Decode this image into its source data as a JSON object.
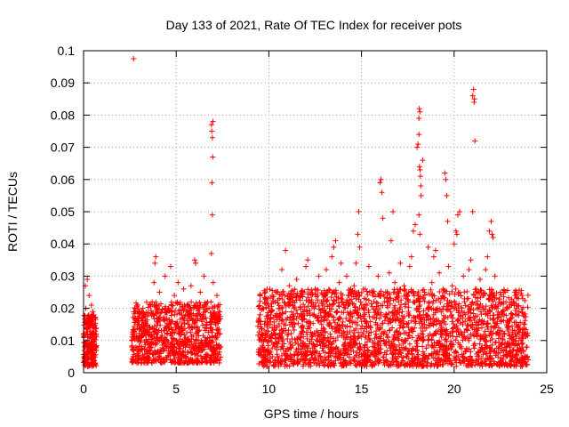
{
  "chart_data": {
    "type": "scatter",
    "title": "Day 133 of 2021, Rate Of TEC Index for receiver pots",
    "xlabel": "GPS time / hours",
    "ylabel": "ROTI / TECUs",
    "xlim": [
      0,
      25
    ],
    "ylim": [
      0,
      0.1
    ],
    "xticks": [
      {
        "value": 0,
        "label": "0"
      },
      {
        "value": 5,
        "label": "5"
      },
      {
        "value": 10,
        "label": "10"
      },
      {
        "value": 15,
        "label": "15"
      },
      {
        "value": 20,
        "label": "20"
      },
      {
        "value": 25,
        "label": "25"
      }
    ],
    "yticks": [
      {
        "value": 0,
        "label": "0"
      },
      {
        "value": 0.01,
        "label": "0.01"
      },
      {
        "value": 0.02,
        "label": "0.02"
      },
      {
        "value": 0.03,
        "label": "0.03"
      },
      {
        "value": 0.04,
        "label": "0.04"
      },
      {
        "value": 0.05,
        "label": "0.05"
      },
      {
        "value": 0.06,
        "label": "0.06"
      },
      {
        "value": 0.07,
        "label": "0.07"
      },
      {
        "value": 0.08,
        "label": "0.08"
      },
      {
        "value": 0.09,
        "label": "0.09"
      },
      {
        "value": 0.1,
        "label": "0.1"
      }
    ],
    "grid": true,
    "marker": "+",
    "color": "#ff0000",
    "series": [
      {
        "name": "pots",
        "points": [
          [
            0.0,
            0.012
          ],
          [
            0.05,
            0.008
          ],
          [
            0.1,
            0.027
          ],
          [
            0.12,
            0.02
          ],
          [
            0.15,
            0.004
          ],
          [
            0.18,
            0.015
          ],
          [
            0.2,
            0.029
          ],
          [
            0.22,
            0.011
          ],
          [
            0.25,
            0.006
          ],
          [
            0.28,
            0.018
          ],
          [
            0.3,
            0.024
          ],
          [
            0.33,
            0.009
          ],
          [
            0.35,
            0.013
          ],
          [
            0.38,
            0.003
          ],
          [
            0.4,
            0.016
          ],
          [
            0.42,
            0.021
          ],
          [
            0.45,
            0.007
          ],
          [
            0.48,
            0.012
          ],
          [
            0.5,
            0.019
          ],
          [
            0.52,
            0.005
          ],
          [
            0.55,
            0.014
          ],
          [
            0.58,
            0.01
          ],
          [
            0.6,
            0.017
          ],
          [
            0.62,
            0.008
          ],
          [
            0.65,
            0.003
          ],
          [
            2.7,
            0.0975
          ],
          [
            2.6,
            0.008
          ],
          [
            2.7,
            0.012
          ],
          [
            2.8,
            0.019
          ],
          [
            2.9,
            0.006
          ],
          [
            3.0,
            0.015
          ],
          [
            3.1,
            0.01
          ],
          [
            3.2,
            0.02
          ],
          [
            3.3,
            0.005
          ],
          [
            3.4,
            0.013
          ],
          [
            3.5,
            0.018
          ],
          [
            3.6,
            0.009
          ],
          [
            3.7,
            0.022
          ],
          [
            3.8,
            0.028
          ],
          [
            3.85,
            0.034
          ],
          [
            3.9,
            0.036
          ],
          [
            3.95,
            0.016
          ],
          [
            4.0,
            0.011
          ],
          [
            4.1,
            0.025
          ],
          [
            4.2,
            0.007
          ],
          [
            4.3,
            0.017
          ],
          [
            4.4,
            0.03
          ],
          [
            4.5,
            0.012
          ],
          [
            4.6,
            0.02
          ],
          [
            4.7,
            0.033
          ],
          [
            4.8,
            0.009
          ],
          [
            4.9,
            0.024
          ],
          [
            5.0,
            0.015
          ],
          [
            5.1,
            0.028
          ],
          [
            5.2,
            0.006
          ],
          [
            5.3,
            0.018
          ],
          [
            5.4,
            0.026
          ],
          [
            5.5,
            0.011
          ],
          [
            5.6,
            0.021
          ],
          [
            5.7,
            0.014
          ],
          [
            5.8,
            0.027
          ],
          [
            5.9,
            0.008
          ],
          [
            6.0,
            0.035
          ],
          [
            6.05,
            0.034
          ],
          [
            6.1,
            0.02
          ],
          [
            6.2,
            0.013
          ],
          [
            6.3,
            0.025
          ],
          [
            6.4,
            0.009
          ],
          [
            6.5,
            0.03
          ],
          [
            6.6,
            0.017
          ],
          [
            6.7,
            0.022
          ],
          [
            6.8,
            0.011
          ],
          [
            6.9,
            0.077
          ],
          [
            6.92,
            0.075
          ],
          [
            6.95,
            0.073
          ],
          [
            6.97,
            0.067
          ],
          [
            6.93,
            0.059
          ],
          [
            6.95,
            0.049
          ],
          [
            6.9,
            0.037
          ],
          [
            6.98,
            0.078
          ],
          [
            7.0,
            0.028
          ],
          [
            7.1,
            0.016
          ],
          [
            7.2,
            0.024
          ],
          [
            7.3,
            0.012
          ],
          [
            7.35,
            0.019
          ],
          [
            7.4,
            0.008
          ],
          [
            9.5,
            0.02
          ],
          [
            9.6,
            0.012
          ],
          [
            9.7,
            0.007
          ],
          [
            9.8,
            0.016
          ],
          [
            9.9,
            0.022
          ],
          [
            10.0,
            0.01
          ],
          [
            10.1,
            0.018
          ],
          [
            10.2,
            0.005
          ],
          [
            10.3,
            0.014
          ],
          [
            10.4,
            0.025
          ],
          [
            10.5,
            0.009
          ],
          [
            10.6,
            0.02
          ],
          [
            10.7,
            0.032
          ],
          [
            10.8,
            0.013
          ],
          [
            10.9,
            0.038
          ],
          [
            11.0,
            0.017
          ],
          [
            11.1,
            0.027
          ],
          [
            11.2,
            0.008
          ],
          [
            11.3,
            0.021
          ],
          [
            11.4,
            0.015
          ],
          [
            11.5,
            0.029
          ],
          [
            11.6,
            0.011
          ],
          [
            11.7,
            0.024
          ],
          [
            11.8,
            0.006
          ],
          [
            11.9,
            0.019
          ],
          [
            12.0,
            0.033
          ],
          [
            12.1,
            0.035
          ],
          [
            12.2,
            0.014
          ],
          [
            12.3,
            0.022
          ],
          [
            12.4,
            0.009
          ],
          [
            12.5,
            0.026
          ],
          [
            12.6,
            0.017
          ],
          [
            12.7,
            0.03
          ],
          [
            12.8,
            0.012
          ],
          [
            12.9,
            0.02
          ],
          [
            13.0,
            0.024
          ],
          [
            13.1,
            0.032
          ],
          [
            13.2,
            0.01
          ],
          [
            13.3,
            0.019
          ],
          [
            13.4,
            0.036
          ],
          [
            13.5,
            0.039
          ],
          [
            13.6,
            0.041
          ],
          [
            13.7,
            0.015
          ],
          [
            13.8,
            0.028
          ],
          [
            13.9,
            0.034
          ],
          [
            14.0,
            0.022
          ],
          [
            14.1,
            0.012
          ],
          [
            14.2,
            0.03
          ],
          [
            14.3,
            0.018
          ],
          [
            14.4,
            0.025
          ],
          [
            14.5,
            0.008
          ],
          [
            14.6,
            0.027
          ],
          [
            14.7,
            0.034
          ],
          [
            14.8,
            0.043
          ],
          [
            14.85,
            0.05
          ],
          [
            14.9,
            0.039
          ],
          [
            15.0,
            0.016
          ],
          [
            15.1,
            0.026
          ],
          [
            15.2,
            0.011
          ],
          [
            15.3,
            0.021
          ],
          [
            15.4,
            0.033
          ],
          [
            15.5,
            0.014
          ],
          [
            15.6,
            0.024
          ],
          [
            15.7,
            0.009
          ],
          [
            15.8,
            0.018
          ],
          [
            15.9,
            0.03
          ],
          [
            16.0,
            0.059
          ],
          [
            16.05,
            0.06
          ],
          [
            16.1,
            0.056
          ],
          [
            16.15,
            0.048
          ],
          [
            16.2,
            0.012
          ],
          [
            16.3,
            0.025
          ],
          [
            16.4,
            0.017
          ],
          [
            16.5,
            0.031
          ],
          [
            16.6,
            0.041
          ],
          [
            16.7,
            0.05
          ],
          [
            16.8,
            0.028
          ],
          [
            16.9,
            0.013
          ],
          [
            17.0,
            0.022
          ],
          [
            17.1,
            0.034
          ],
          [
            17.2,
            0.019
          ],
          [
            17.3,
            0.027
          ],
          [
            17.4,
            0.01
          ],
          [
            17.5,
            0.024
          ],
          [
            17.6,
            0.033
          ],
          [
            17.7,
            0.036
          ],
          [
            17.8,
            0.044
          ],
          [
            17.9,
            0.046
          ],
          [
            18.0,
            0.07
          ],
          [
            18.05,
            0.071
          ],
          [
            18.1,
            0.079
          ],
          [
            18.12,
            0.082
          ],
          [
            18.15,
            0.081
          ],
          [
            18.1,
            0.074
          ],
          [
            18.13,
            0.064
          ],
          [
            18.16,
            0.063
          ],
          [
            18.18,
            0.061
          ],
          [
            18.2,
            0.058
          ],
          [
            18.22,
            0.055
          ],
          [
            18.1,
            0.049
          ],
          [
            18.15,
            0.043
          ],
          [
            18.3,
            0.066
          ],
          [
            18.4,
            0.025
          ],
          [
            18.5,
            0.018
          ],
          [
            18.6,
            0.039
          ],
          [
            18.7,
            0.012
          ],
          [
            18.8,
            0.028
          ],
          [
            18.9,
            0.036
          ],
          [
            19.0,
            0.038
          ],
          [
            19.1,
            0.02
          ],
          [
            19.2,
            0.031
          ],
          [
            19.3,
            0.014
          ],
          [
            19.4,
            0.026
          ],
          [
            19.5,
            0.062
          ],
          [
            19.55,
            0.06
          ],
          [
            19.6,
            0.055
          ],
          [
            19.65,
            0.047
          ],
          [
            19.7,
            0.033
          ],
          [
            19.8,
            0.019
          ],
          [
            19.9,
            0.027
          ],
          [
            20.0,
            0.04
          ],
          [
            20.1,
            0.044
          ],
          [
            20.15,
            0.043
          ],
          [
            20.2,
            0.049
          ],
          [
            20.3,
            0.05
          ],
          [
            20.4,
            0.012
          ],
          [
            20.5,
            0.03
          ],
          [
            20.6,
            0.018
          ],
          [
            20.7,
            0.023
          ],
          [
            20.8,
            0.032
          ],
          [
            20.9,
            0.035
          ],
          [
            21.0,
            0.086
          ],
          [
            21.05,
            0.088
          ],
          [
            21.1,
            0.085
          ],
          [
            21.08,
            0.084
          ],
          [
            21.12,
            0.072
          ],
          [
            21.0,
            0.05
          ],
          [
            21.2,
            0.026
          ],
          [
            21.3,
            0.015
          ],
          [
            21.4,
            0.029
          ],
          [
            21.5,
            0.011
          ],
          [
            21.6,
            0.024
          ],
          [
            21.7,
            0.032
          ],
          [
            21.8,
            0.036
          ],
          [
            21.9,
            0.044
          ],
          [
            22.0,
            0.047
          ],
          [
            22.05,
            0.043
          ],
          [
            22.1,
            0.042
          ],
          [
            22.2,
            0.03
          ],
          [
            22.3,
            0.02
          ],
          [
            22.4,
            0.014
          ],
          [
            22.5,
            0.025
          ],
          [
            22.6,
            0.009
          ],
          [
            22.7,
            0.018
          ],
          [
            22.8,
            0.022
          ],
          [
            22.9,
            0.013
          ],
          [
            23.0,
            0.016
          ],
          [
            23.1,
            0.021
          ],
          [
            23.2,
            0.007
          ],
          [
            23.3,
            0.024
          ],
          [
            23.4,
            0.012
          ],
          [
            23.5,
            0.019
          ],
          [
            23.6,
            0.01
          ],
          [
            23.7,
            0.023
          ],
          [
            23.8,
            0.015
          ],
          [
            23.9,
            0.008
          ]
        ]
      }
    ],
    "dense_bands": [
      {
        "x": [
          0.0,
          0.7
        ],
        "y": [
          0.002,
          0.018
        ],
        "n": 220
      },
      {
        "x": [
          2.6,
          7.4
        ],
        "y": [
          0.003,
          0.022
        ],
        "n": 900
      },
      {
        "x": [
          9.4,
          24.0
        ],
        "y": [
          0.002,
          0.026
        ],
        "n": 2400
      }
    ]
  }
}
